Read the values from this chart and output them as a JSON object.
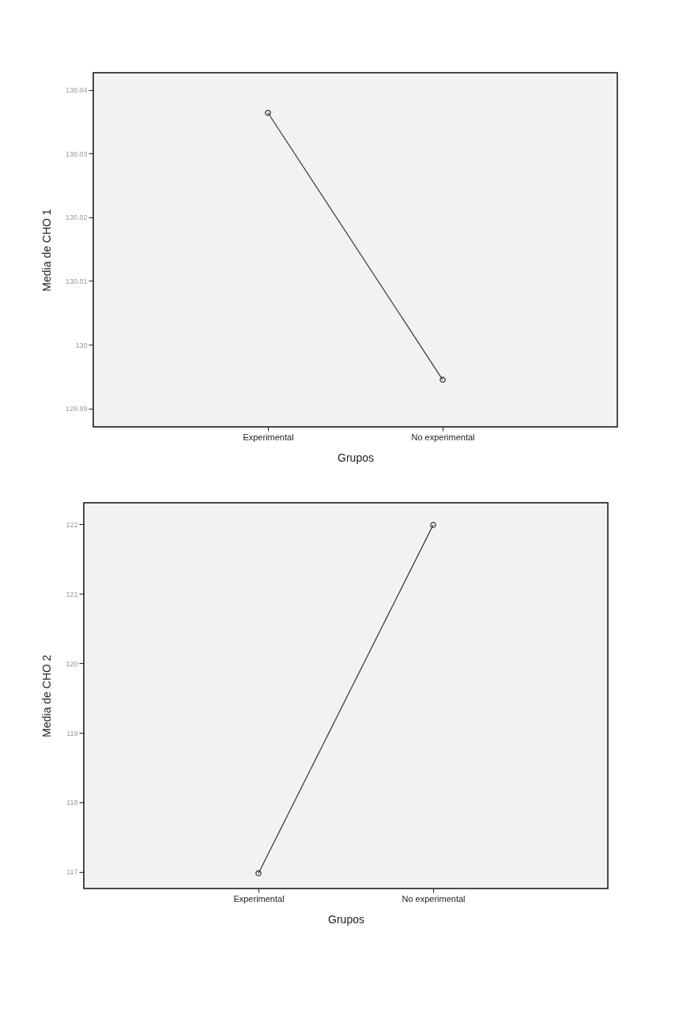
{
  "chart_data": [
    {
      "type": "line",
      "xlabel": "Grupos",
      "ylabel": "Media de CHO 1",
      "categories": [
        "Experimental",
        "No experimental"
      ],
      "series": [
        {
          "color": "#333333",
          "values": [
            130.0364,
            129.9945
          ]
        }
      ],
      "ylim": [
        129.9871,
        130.0427
      ],
      "yticks": [
        129.99,
        130,
        130.01,
        130.02,
        130.03,
        130.04
      ],
      "marker": "circle",
      "grid": false,
      "legend": false
    },
    {
      "type": "line",
      "xlabel": "Grupos",
      "ylabel": "Media de CHO 2",
      "categories": [
        "Experimental",
        "No experimental"
      ],
      "series": [
        {
          "color": "#333333",
          "values": [
            116.98,
            121.99
          ]
        }
      ],
      "ylim": [
        116.76,
        122.31
      ],
      "yticks": [
        117,
        118,
        119,
        120,
        121,
        122
      ],
      "marker": "circle",
      "grid": false,
      "legend": false
    }
  ]
}
